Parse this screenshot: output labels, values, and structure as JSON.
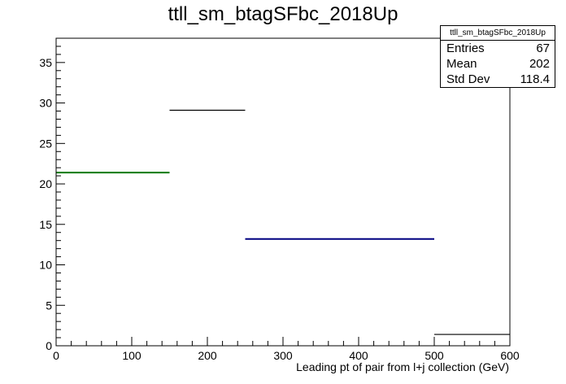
{
  "title": "ttll_sm_btagSFbc_2018Up",
  "stats": {
    "name": "ttll_sm_btagSFbc_2018Up",
    "rows": [
      {
        "label": "Entries",
        "value": "67"
      },
      {
        "label": "Mean",
        "value": "202"
      },
      {
        "label": "Std Dev",
        "value": "118.4"
      }
    ]
  },
  "chart_data": {
    "type": "bar",
    "title": "ttll_sm_btagSFbc_2018Up",
    "xlabel": "Leading pt of pair from l+j collection (GeV)",
    "ylabel": "",
    "xlim": [
      0,
      600
    ],
    "ylim": [
      0,
      38
    ],
    "xticks": [
      0,
      100,
      200,
      300,
      400,
      500,
      600
    ],
    "yticks": [
      0,
      5,
      10,
      15,
      20,
      25,
      30,
      35
    ],
    "bins": [
      {
        "x0": 0,
        "x1": 150,
        "value": 21.4,
        "color": "#007a00"
      },
      {
        "x0": 150,
        "x1": 250,
        "value": 29.1,
        "color": "#000000"
      },
      {
        "x0": 250,
        "x1": 500,
        "value": 13.2,
        "color": "#000080"
      },
      {
        "x0": 500,
        "x1": 600,
        "value": 1.4,
        "color": "#000000"
      }
    ]
  }
}
